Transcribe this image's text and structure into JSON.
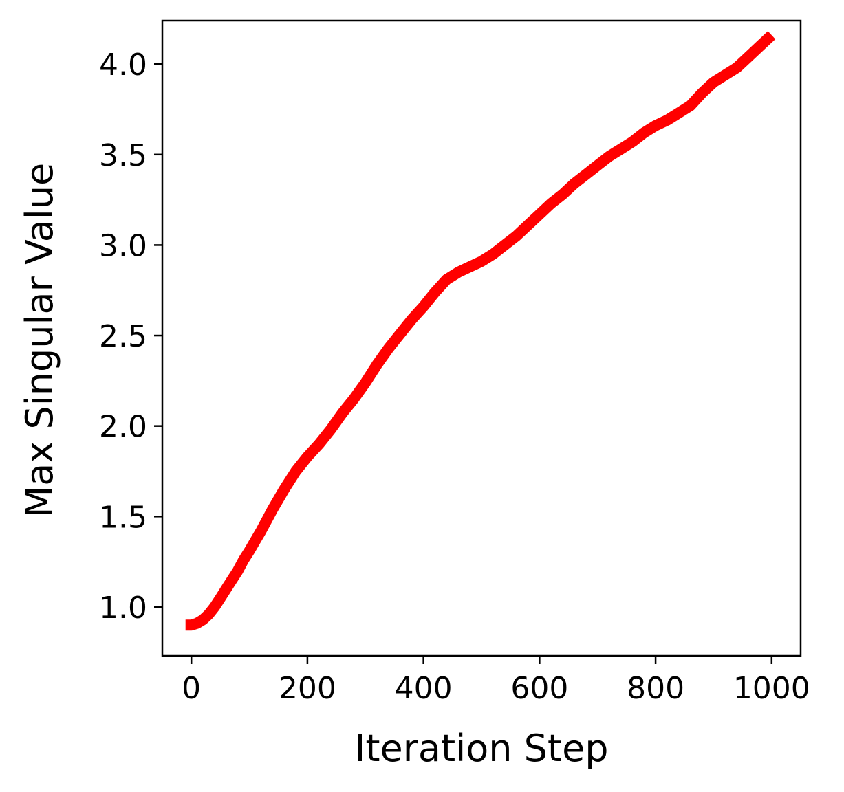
{
  "chart_data": {
    "type": "line",
    "title": "",
    "xlabel": "Iteration Step",
    "ylabel": "Max Singular Value",
    "xlim": [
      -50,
      1050
    ],
    "ylim": [
      0.73,
      4.24
    ],
    "xticks": [
      0,
      200,
      400,
      600,
      800,
      1000
    ],
    "xtick_labels": [
      "0",
      "200",
      "400",
      "600",
      "800",
      "1000"
    ],
    "yticks": [
      1.0,
      1.5,
      2.0,
      2.5,
      3.0,
      3.5,
      4.0
    ],
    "ytick_labels": [
      "1.0",
      "1.5",
      "2.0",
      "2.5",
      "3.0",
      "3.5",
      "4.0"
    ],
    "grid": false,
    "legend": "none",
    "series": [
      {
        "color": "#ff0000",
        "x": [
          -10,
          0,
          10,
          20,
          30,
          40,
          50,
          60,
          70,
          80,
          90,
          100,
          120,
          140,
          160,
          180,
          200,
          220,
          240,
          260,
          280,
          300,
          320,
          340,
          360,
          380,
          400,
          420,
          440,
          460,
          480,
          500,
          520,
          540,
          560,
          580,
          600,
          620,
          640,
          660,
          680,
          700,
          720,
          740,
          760,
          780,
          800,
          820,
          840,
          860,
          880,
          900,
          920,
          940,
          960,
          980,
          1000
        ],
        "y": [
          0.9,
          0.9,
          0.91,
          0.93,
          0.96,
          1.0,
          1.05,
          1.1,
          1.15,
          1.2,
          1.26,
          1.31,
          1.42,
          1.54,
          1.65,
          1.75,
          1.83,
          1.9,
          1.98,
          2.07,
          2.15,
          2.24,
          2.34,
          2.43,
          2.51,
          2.59,
          2.66,
          2.74,
          2.81,
          2.85,
          2.88,
          2.91,
          2.95,
          3.0,
          3.05,
          3.11,
          3.17,
          3.23,
          3.28,
          3.34,
          3.39,
          3.44,
          3.49,
          3.53,
          3.57,
          3.62,
          3.66,
          3.69,
          3.73,
          3.77,
          3.84,
          3.9,
          3.94,
          3.98,
          4.04,
          4.1,
          4.16
        ]
      }
    ]
  }
}
